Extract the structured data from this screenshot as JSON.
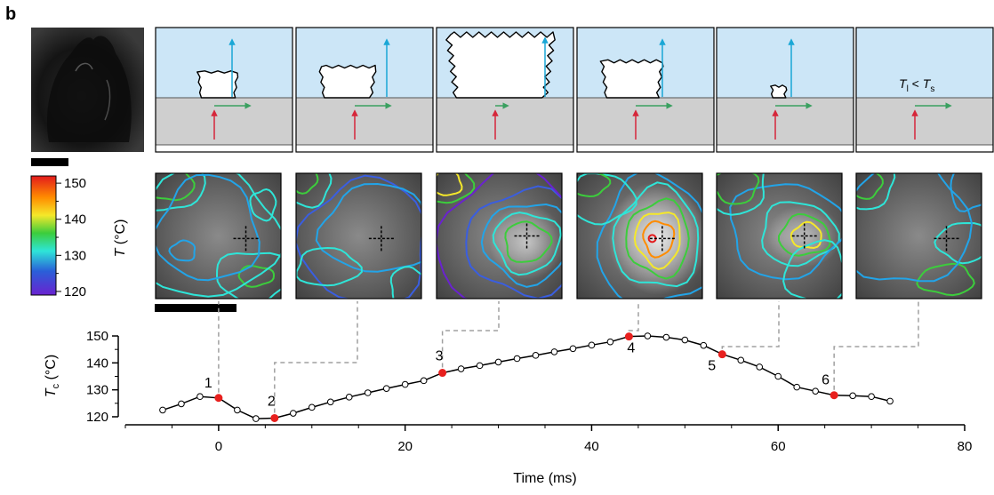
{
  "panel_letter": "b",
  "schematic": {
    "inequality": {
      "T": "T",
      "l_sub": "l",
      "op": " < ",
      "s_sub": "s"
    }
  },
  "colorbar": {
    "label_main": "T",
    "label_unit": " (°C)",
    "ticks": [
      "150",
      "140",
      "130",
      "120"
    ],
    "min": 119,
    "max": 152
  },
  "chart_data": {
    "type": "line",
    "title": "",
    "xlabel": "Time (ms)",
    "ylabel_main": "T",
    "ylabel_sub": "c",
    "ylabel_unit": " (°C)",
    "xlim": [
      -10,
      80
    ],
    "ylim": [
      119,
      151
    ],
    "xticks": [
      0,
      20,
      40,
      60,
      80
    ],
    "yticks": [
      120,
      130,
      140,
      150
    ],
    "series": [
      {
        "x": [
          -6,
          -4,
          -2,
          0,
          2,
          4,
          6,
          8,
          10,
          12,
          14,
          16,
          18,
          20,
          22,
          24,
          26,
          28,
          30,
          32,
          34,
          36,
          38,
          40,
          42,
          44,
          46,
          48,
          50,
          52,
          54,
          56,
          58,
          60,
          62,
          64,
          66,
          68,
          70,
          72
        ],
        "y": [
          122.5,
          124.8,
          127.5,
          127.0,
          122.5,
          119.3,
          119.5,
          121.3,
          123.5,
          125.5,
          127.3,
          128.9,
          130.5,
          132.0,
          133.4,
          136.3,
          137.8,
          139.0,
          140.3,
          141.6,
          142.8,
          144.1,
          145.3,
          146.6,
          147.8,
          149.8,
          150.0,
          149.5,
          148.5,
          146.5,
          143.2,
          141.0,
          138.5,
          135.0,
          131.0,
          129.5,
          128.0,
          127.8,
          127.5,
          125.8
        ]
      }
    ],
    "highlighted": [
      {
        "label": "1",
        "x": 0,
        "y": 127.0
      },
      {
        "label": "2",
        "x": 6,
        "y": 119.5
      },
      {
        "label": "3",
        "x": 24,
        "y": 136.3
      },
      {
        "label": "4",
        "x": 44,
        "y": 149.8
      },
      {
        "label": "5",
        "x": 54,
        "y": 143.2
      },
      {
        "label": "6",
        "x": 66,
        "y": 128.0
      }
    ],
    "line_color": "#000000",
    "highlight_color": "#e8201e"
  },
  "colors": {
    "water_blue": "#cce6f7",
    "substrate_gray": "#cfcfcf",
    "vapor_arrow": "#1aa7d6",
    "flow_arrow": "#3aa060",
    "heat_arrow": "#d6263a",
    "leader_line": "#a0a0a0"
  }
}
